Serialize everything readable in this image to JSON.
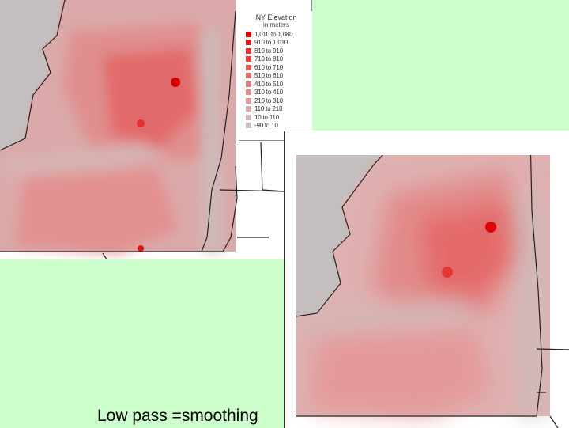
{
  "legend": {
    "title": "NY Elevation",
    "subtitle": "in meters",
    "items": [
      {
        "label": "1,010 to 1,080",
        "color": "#dd0000"
      },
      {
        "label": "910 to 1,010",
        "color": "#df1a1a"
      },
      {
        "label": "810 to 910",
        "color": "#e22e2e"
      },
      {
        "label": "710 to 810",
        "color": "#e44444"
      },
      {
        "label": "610 to 710",
        "color": "#e55858"
      },
      {
        "label": "510 to 610",
        "color": "#e56a6a"
      },
      {
        "label": "410 to 510",
        "color": "#e57c7c"
      },
      {
        "label": "310 to 410",
        "color": "#e48c8c"
      },
      {
        "label": "210 to 310",
        "color": "#e09c9c"
      },
      {
        "label": "110 to 210",
        "color": "#dbaaaa"
      },
      {
        "label": "10 to 110",
        "color": "#d2b6b6"
      },
      {
        "label": "-90 to 10",
        "color": "#c8c0c0"
      }
    ]
  },
  "caption": "Low pass =smoothing",
  "colors": {
    "background": "#ccffcc",
    "lowland": "#c8c0c0",
    "base": "#dba9a9",
    "mid": "#e48080",
    "high": "#e25050",
    "peak": "#dd0000"
  }
}
